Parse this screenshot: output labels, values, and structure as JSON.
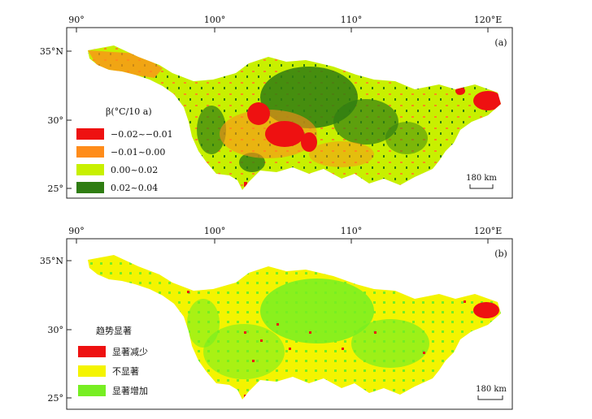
{
  "panel_a": {
    "label": "(a)",
    "legend_title": "β(°C/10 a)",
    "legend": [
      {
        "label": "−0.02~−0.01",
        "color": "#ee1111"
      },
      {
        "label": "−0.01~0.00",
        "color": "#ff8c1a"
      },
      {
        "label": "0.00~0.02",
        "color": "#c8f000"
      },
      {
        "label": "0.02~0.04",
        "color": "#2f7d12"
      }
    ],
    "scale": "180 km"
  },
  "panel_b": {
    "label": "(b)",
    "legend_title": "趋势显著",
    "legend": [
      {
        "label": "显著减少",
        "color": "#ee1111"
      },
      {
        "label": "不显著",
        "color": "#f4f400"
      },
      {
        "label": "显著增加",
        "color": "#77ee22"
      }
    ],
    "scale": "180 km"
  },
  "axes": {
    "lon_ticks": [
      "90°",
      "100°",
      "110°",
      "120°E"
    ],
    "lat_ticks": [
      "35°N",
      "30°",
      "25°"
    ]
  }
}
